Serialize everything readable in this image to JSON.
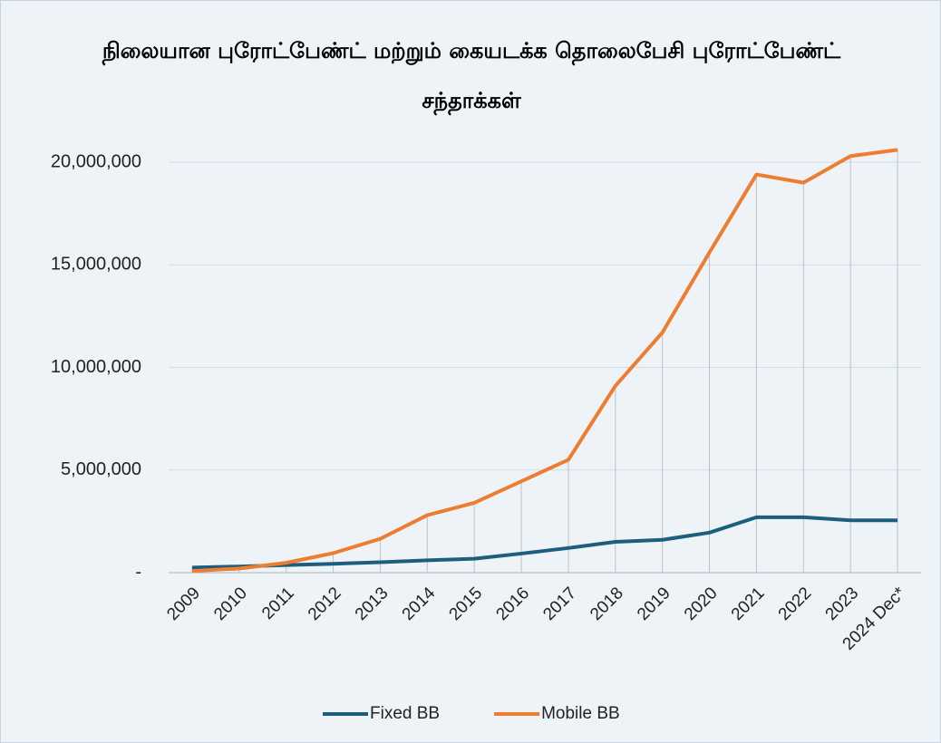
{
  "chart_data": {
    "type": "line",
    "title": "நிலையான புரோட்பேண்ட் மற்றும் கையடக்க  தொலைபேசி புரோட்பேண்ட் சந்தாக்கள்",
    "categories": [
      "2009",
      "2010",
      "2011",
      "2012",
      "2013",
      "2014",
      "2015",
      "2016",
      "2017",
      "2018",
      "2019",
      "2020",
      "2021",
      "2022",
      "2023",
      "2024 Dec*"
    ],
    "series": [
      {
        "name": "Fixed BB",
        "color": "#1b5e7e",
        "values": [
          250000,
          300000,
          370000,
          430000,
          510000,
          600000,
          680000,
          930000,
          1200000,
          1500000,
          1600000,
          1950000,
          2700000,
          2700000,
          2550000,
          2550000
        ]
      },
      {
        "name": "Mobile BB",
        "color": "#ed7d31",
        "values": [
          80000,
          200000,
          480000,
          950000,
          1650000,
          2800000,
          3400000,
          4450000,
          5500000,
          9100000,
          11700000,
          15600000,
          19400000,
          19000000,
          20300000,
          20600000
        ]
      }
    ],
    "ylim": [
      0,
      20000000
    ],
    "yticks": [
      {
        "value": 0,
        "label": "-"
      },
      {
        "value": 5000000,
        "label": "5,000,000"
      },
      {
        "value": 10000000,
        "label": "10,000,000"
      },
      {
        "value": 15000000,
        "label": "15,000,000"
      },
      {
        "value": 20000000,
        "label": "20,000,000"
      }
    ],
    "grid": true,
    "legend": "bottom"
  }
}
